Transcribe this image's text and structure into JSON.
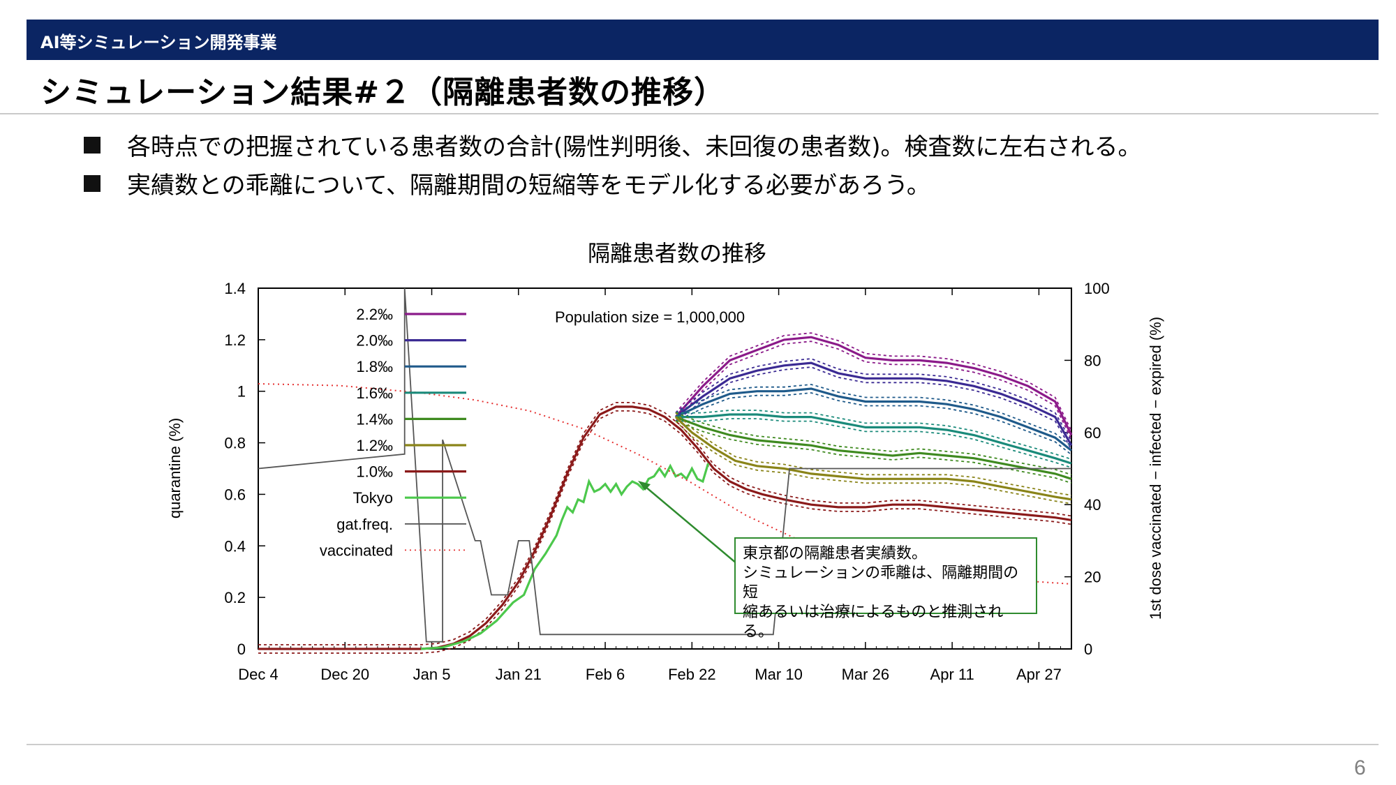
{
  "header": {
    "banner": "AI等シミュレーション開発事業",
    "title": "シミュレーション結果#２（隔離患者数の推移）"
  },
  "bullets": [
    "各時点での把握されている患者数の合計(陽性判明後、未回復の患者数)。検査数に左右される。",
    "実績数との乖離について、隔離期間の短縮等をモデル化する必要があろう。"
  ],
  "callout": {
    "lines": [
      "東京都の隔離患者実績数。",
      "シミュレーションの乖離は、隔離期間の短",
      "縮あるいは治療によるものと推測される。"
    ]
  },
  "page_number": "6",
  "colors": {
    "banner": "#0b2563",
    "callout_border": "#2e8b2e"
  },
  "chart_data": {
    "type": "line",
    "title": "隔離患者数の推移",
    "annotation": "Population size = 1,000,000",
    "xlabel": "",
    "ylabel": "quarantine (%)",
    "y2label": "1st dose vaccinated − infected − expired (%)",
    "x_ticks": [
      "Dec 4",
      "Dec 20",
      "Jan 5",
      "Jan 21",
      "Feb 6",
      "Feb 22",
      "Mar 10",
      "Mar 26",
      "Apr 11",
      "Apr 27"
    ],
    "xlim_days": [
      0,
      150
    ],
    "ylim": [
      0,
      1.4
    ],
    "y_ticks": [
      "0",
      "0.2",
      "0.4",
      "0.6",
      "0.8",
      "1",
      "1.2",
      "1.4"
    ],
    "y2lim": [
      0,
      100
    ],
    "y2_ticks": [
      "0",
      "20",
      "40",
      "60",
      "80",
      "100"
    ],
    "legend_position": "top-left",
    "series": [
      {
        "name": "2.2‰",
        "color": "#8b1a89",
        "style": "solid+dotted band",
        "points": [
          [
            77,
            0.9
          ],
          [
            82,
            1.02
          ],
          [
            87,
            1.12
          ],
          [
            92,
            1.16
          ],
          [
            97,
            1.2
          ],
          [
            102,
            1.21
          ],
          [
            107,
            1.18
          ],
          [
            112,
            1.13
          ],
          [
            117,
            1.12
          ],
          [
            122,
            1.12
          ],
          [
            127,
            1.11
          ],
          [
            132,
            1.09
          ],
          [
            137,
            1.06
          ],
          [
            142,
            1.02
          ],
          [
            147,
            0.96
          ],
          [
            150,
            0.83
          ]
        ]
      },
      {
        "name": "2.0‰",
        "color": "#3b2a93",
        "style": "solid+dotted band",
        "points": [
          [
            77,
            0.9
          ],
          [
            82,
            0.98
          ],
          [
            87,
            1.05
          ],
          [
            92,
            1.08
          ],
          [
            97,
            1.1
          ],
          [
            102,
            1.11
          ],
          [
            107,
            1.07
          ],
          [
            112,
            1.05
          ],
          [
            117,
            1.05
          ],
          [
            122,
            1.05
          ],
          [
            127,
            1.04
          ],
          [
            132,
            1.02
          ],
          [
            137,
            0.99
          ],
          [
            142,
            0.95
          ],
          [
            147,
            0.9
          ],
          [
            150,
            0.79
          ]
        ]
      },
      {
        "name": "1.8‰",
        "color": "#1f5a8a",
        "style": "solid+dotted band",
        "points": [
          [
            77,
            0.9
          ],
          [
            82,
            0.95
          ],
          [
            87,
            0.99
          ],
          [
            92,
            1.0
          ],
          [
            97,
            1.0
          ],
          [
            102,
            1.01
          ],
          [
            107,
            0.98
          ],
          [
            112,
            0.96
          ],
          [
            117,
            0.96
          ],
          [
            122,
            0.96
          ],
          [
            127,
            0.95
          ],
          [
            132,
            0.93
          ],
          [
            137,
            0.9
          ],
          [
            142,
            0.86
          ],
          [
            147,
            0.82
          ],
          [
            150,
            0.77
          ]
        ]
      },
      {
        "name": "1.6‰",
        "color": "#1a8a7a",
        "style": "solid+dotted band",
        "points": [
          [
            77,
            0.9
          ],
          [
            82,
            0.9
          ],
          [
            87,
            0.91
          ],
          [
            92,
            0.91
          ],
          [
            97,
            0.9
          ],
          [
            102,
            0.9
          ],
          [
            107,
            0.88
          ],
          [
            112,
            0.86
          ],
          [
            117,
            0.86
          ],
          [
            122,
            0.86
          ],
          [
            127,
            0.85
          ],
          [
            132,
            0.83
          ],
          [
            137,
            0.8
          ],
          [
            142,
            0.77
          ],
          [
            147,
            0.74
          ],
          [
            150,
            0.72
          ]
        ]
      },
      {
        "name": "1.4‰",
        "color": "#3f8a20",
        "style": "solid+dotted band",
        "points": [
          [
            77,
            0.9
          ],
          [
            82,
            0.86
          ],
          [
            87,
            0.83
          ],
          [
            92,
            0.81
          ],
          [
            97,
            0.8
          ],
          [
            102,
            0.79
          ],
          [
            107,
            0.77
          ],
          [
            112,
            0.76
          ],
          [
            117,
            0.75
          ],
          [
            122,
            0.76
          ],
          [
            127,
            0.75
          ],
          [
            132,
            0.74
          ],
          [
            137,
            0.72
          ],
          [
            142,
            0.7
          ],
          [
            147,
            0.68
          ],
          [
            150,
            0.66
          ]
        ]
      },
      {
        "name": "1.2‰",
        "color": "#8a8419",
        "style": "solid+dotted band",
        "points": [
          [
            77,
            0.9
          ],
          [
            80,
            0.84
          ],
          [
            84,
            0.78
          ],
          [
            88,
            0.73
          ],
          [
            92,
            0.71
          ],
          [
            97,
            0.7
          ],
          [
            102,
            0.68
          ],
          [
            107,
            0.67
          ],
          [
            112,
            0.66
          ],
          [
            117,
            0.66
          ],
          [
            122,
            0.66
          ],
          [
            127,
            0.66
          ],
          [
            132,
            0.65
          ],
          [
            137,
            0.63
          ],
          [
            142,
            0.61
          ],
          [
            147,
            0.59
          ],
          [
            150,
            0.58
          ]
        ]
      },
      {
        "name": "1.0‰",
        "color": "#8b1a1a",
        "style": "solid+dotted band",
        "points": [
          [
            0,
            0
          ],
          [
            30,
            0
          ],
          [
            33,
            0.005
          ],
          [
            36,
            0.02
          ],
          [
            39,
            0.05
          ],
          [
            42,
            0.1
          ],
          [
            45,
            0.17
          ],
          [
            48,
            0.26
          ],
          [
            51,
            0.38
          ],
          [
            54,
            0.52
          ],
          [
            57,
            0.68
          ],
          [
            60,
            0.82
          ],
          [
            63,
            0.91
          ],
          [
            66,
            0.94
          ],
          [
            69,
            0.94
          ],
          [
            72,
            0.93
          ],
          [
            75,
            0.9
          ],
          [
            78,
            0.85
          ],
          [
            81,
            0.78
          ],
          [
            84,
            0.7
          ],
          [
            87,
            0.65
          ],
          [
            90,
            0.62
          ],
          [
            93,
            0.6
          ],
          [
            97,
            0.58
          ],
          [
            102,
            0.56
          ],
          [
            107,
            0.55
          ],
          [
            112,
            0.55
          ],
          [
            117,
            0.56
          ],
          [
            122,
            0.56
          ],
          [
            127,
            0.55
          ],
          [
            132,
            0.54
          ],
          [
            137,
            0.53
          ],
          [
            142,
            0.52
          ],
          [
            147,
            0.51
          ],
          [
            150,
            0.5
          ]
        ]
      },
      {
        "name": "Tokyo",
        "color": "#4cc84c",
        "style": "solid",
        "points": [
          [
            30,
            0
          ],
          [
            34,
            0.006
          ],
          [
            38,
            0.03
          ],
          [
            41,
            0.06
          ],
          [
            44,
            0.11
          ],
          [
            47,
            0.18
          ],
          [
            49,
            0.21
          ],
          [
            51,
            0.31
          ],
          [
            53,
            0.37
          ],
          [
            55,
            0.44
          ],
          [
            56,
            0.5
          ],
          [
            57,
            0.55
          ],
          [
            58,
            0.53
          ],
          [
            59,
            0.58
          ],
          [
            60,
            0.57
          ],
          [
            61,
            0.65
          ],
          [
            62,
            0.61
          ],
          [
            63,
            0.62
          ],
          [
            64,
            0.64
          ],
          [
            65,
            0.61
          ],
          [
            66,
            0.64
          ],
          [
            67,
            0.6
          ],
          [
            68,
            0.63
          ],
          [
            69,
            0.65
          ],
          [
            70,
            0.64
          ],
          [
            71,
            0.62
          ],
          [
            72,
            0.66
          ],
          [
            73,
            0.67
          ],
          [
            74,
            0.7
          ],
          [
            75,
            0.67
          ],
          [
            76,
            0.71
          ],
          [
            77,
            0.67
          ],
          [
            78,
            0.68
          ],
          [
            79,
            0.66
          ],
          [
            80,
            0.7
          ],
          [
            81,
            0.66
          ],
          [
            82,
            0.65
          ],
          [
            83,
            0.72
          ]
        ]
      },
      {
        "name": "gat.freq.",
        "color": "#555555",
        "style": "solid",
        "axis": "y2",
        "points": [
          [
            0,
            50
          ],
          [
            27,
            54
          ],
          [
            27,
            100
          ],
          [
            31,
            2
          ],
          [
            34,
            2
          ],
          [
            34,
            58
          ],
          [
            40,
            30
          ],
          [
            41,
            30
          ],
          [
            43,
            15
          ],
          [
            46,
            15
          ],
          [
            48,
            30
          ],
          [
            50,
            30
          ],
          [
            52,
            4
          ],
          [
            95,
            4
          ],
          [
            98,
            50
          ],
          [
            150,
            50
          ]
        ]
      },
      {
        "name": "vaccinated",
        "color": "#e53030",
        "style": "dotted",
        "axis": "y2",
        "points": [
          [
            0,
            73.5
          ],
          [
            15,
            73
          ],
          [
            30,
            71
          ],
          [
            40,
            69
          ],
          [
            50,
            66
          ],
          [
            60,
            61
          ],
          [
            70,
            54
          ],
          [
            80,
            46
          ],
          [
            90,
            37
          ],
          [
            100,
            30
          ],
          [
            110,
            25
          ],
          [
            120,
            22
          ],
          [
            130,
            20
          ],
          [
            140,
            19
          ],
          [
            150,
            18
          ]
        ]
      }
    ]
  }
}
